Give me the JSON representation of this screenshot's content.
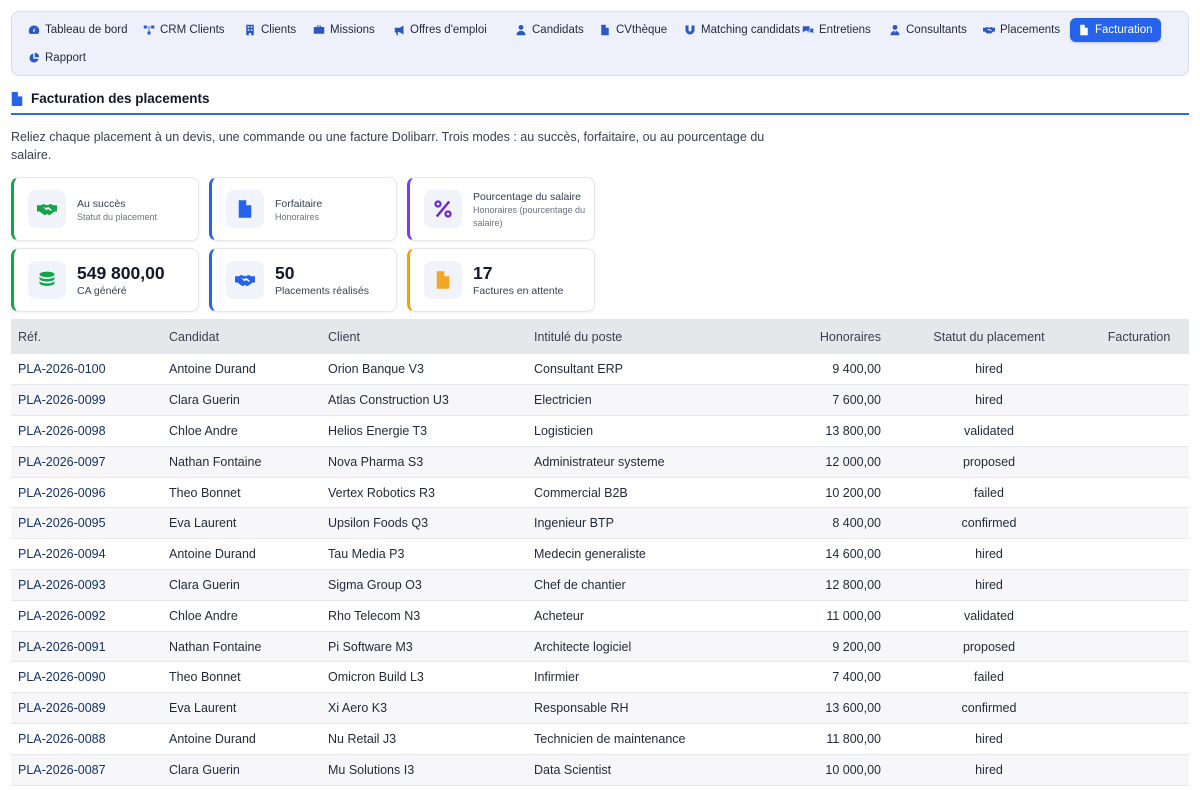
{
  "nav": {
    "items": [
      {
        "label": "Tableau de bord",
        "icon": "dashboard-icon"
      },
      {
        "label": "CRM Clients",
        "icon": "network-icon"
      },
      {
        "label": "Clients",
        "icon": "building-icon"
      },
      {
        "label": "Missions",
        "icon": "briefcase-icon"
      },
      {
        "label": "Offres d'emploi",
        "icon": "megaphone-icon"
      },
      {
        "label": "Candidats",
        "icon": "user-icon"
      },
      {
        "label": "CVthèque",
        "icon": "file-icon"
      },
      {
        "label": "Matching candidats",
        "icon": "magnet-icon"
      },
      {
        "label": "Entretiens",
        "icon": "comments-icon"
      },
      {
        "label": "Consultants",
        "icon": "user-tie-icon"
      },
      {
        "label": "Placements",
        "icon": "handshake-icon"
      },
      {
        "label": "Facturation",
        "icon": "invoice-icon",
        "active": true
      },
      {
        "label": "Rapport",
        "icon": "chart-pie-icon"
      }
    ]
  },
  "page": {
    "title": "Facturation des placements",
    "intro": "Reliez chaque placement à un devis, une commande ou une facture Dolibarr. Trois modes : au succès, forfaitaire, ou au pourcentage du salaire."
  },
  "modes": [
    {
      "title": "Au succès",
      "subtitle": "Statut du placement",
      "color": "#16a34a",
      "icon": "handshake-icon"
    },
    {
      "title": "Forfaitaire",
      "subtitle": "Honoraires",
      "color": "#2563eb",
      "icon": "file-lines-icon"
    },
    {
      "title": "Pourcentage du salaire",
      "subtitle": "Honoraires (pourcentage du salaire)",
      "color": "#7c3aed",
      "icon": "percent-icon"
    }
  ],
  "stats": [
    {
      "value": "549 800,00",
      "label": "CA généré",
      "color": "#16a34a",
      "icon": "coins-icon"
    },
    {
      "value": "50",
      "label": "Placements réalisés",
      "color": "#2563eb",
      "icon": "handshake-icon"
    },
    {
      "value": "17",
      "label": "Factures en attente",
      "color": "#f59e0b",
      "icon": "invoice-dollar-icon"
    }
  ],
  "table": {
    "headers": [
      "Réf.",
      "Candidat",
      "Client",
      "Intitulé du poste",
      "Honoraires",
      "Statut du placement",
      "Facturation"
    ],
    "rows": [
      {
        "ref": "PLA-2026-0100",
        "candidat": "Antoine Durand",
        "client": "Orion Banque V3",
        "poste": "Consultant ERP",
        "honoraires": "9 400,00",
        "statut": "hired",
        "facturation": ""
      },
      {
        "ref": "PLA-2026-0099",
        "candidat": "Clara Guerin",
        "client": "Atlas Construction U3",
        "poste": "Electricien",
        "honoraires": "7 600,00",
        "statut": "hired",
        "facturation": ""
      },
      {
        "ref": "PLA-2026-0098",
        "candidat": "Chloe Andre",
        "client": "Helios Energie T3",
        "poste": "Logisticien",
        "honoraires": "13 800,00",
        "statut": "validated",
        "facturation": ""
      },
      {
        "ref": "PLA-2026-0097",
        "candidat": "Nathan Fontaine",
        "client": "Nova Pharma S3",
        "poste": "Administrateur systeme",
        "honoraires": "12 000,00",
        "statut": "proposed",
        "facturation": ""
      },
      {
        "ref": "PLA-2026-0096",
        "candidat": "Theo Bonnet",
        "client": "Vertex Robotics R3",
        "poste": "Commercial B2B",
        "honoraires": "10 200,00",
        "statut": "failed",
        "facturation": ""
      },
      {
        "ref": "PLA-2026-0095",
        "candidat": "Eva Laurent",
        "client": "Upsilon Foods Q3",
        "poste": "Ingenieur BTP",
        "honoraires": "8 400,00",
        "statut": "confirmed",
        "facturation": ""
      },
      {
        "ref": "PLA-2026-0094",
        "candidat": "Antoine Durand",
        "client": "Tau Media P3",
        "poste": "Medecin generaliste",
        "honoraires": "14 600,00",
        "statut": "hired",
        "facturation": ""
      },
      {
        "ref": "PLA-2026-0093",
        "candidat": "Clara Guerin",
        "client": "Sigma Group O3",
        "poste": "Chef de chantier",
        "honoraires": "12 800,00",
        "statut": "hired",
        "facturation": ""
      },
      {
        "ref": "PLA-2026-0092",
        "candidat": "Chloe Andre",
        "client": "Rho Telecom N3",
        "poste": "Acheteur",
        "honoraires": "11 000,00",
        "statut": "validated",
        "facturation": ""
      },
      {
        "ref": "PLA-2026-0091",
        "candidat": "Nathan Fontaine",
        "client": "Pi Software M3",
        "poste": "Architecte logiciel",
        "honoraires": "9 200,00",
        "statut": "proposed",
        "facturation": ""
      },
      {
        "ref": "PLA-2026-0090",
        "candidat": "Theo Bonnet",
        "client": "Omicron Build L3",
        "poste": "Infirmier",
        "honoraires": "7 400,00",
        "statut": "failed",
        "facturation": ""
      },
      {
        "ref": "PLA-2026-0089",
        "candidat": "Eva Laurent",
        "client": "Xi Aero K3",
        "poste": "Responsable RH",
        "honoraires": "13 600,00",
        "statut": "confirmed",
        "facturation": ""
      },
      {
        "ref": "PLA-2026-0088",
        "candidat": "Antoine Durand",
        "client": "Nu Retail J3",
        "poste": "Technicien de maintenance",
        "honoraires": "11 800,00",
        "statut": "hired",
        "facturation": ""
      },
      {
        "ref": "PLA-2026-0087",
        "candidat": "Clara Guerin",
        "client": "Mu Solutions I3",
        "poste": "Data Scientist",
        "honoraires": "10 000,00",
        "statut": "hired",
        "facturation": ""
      }
    ]
  }
}
